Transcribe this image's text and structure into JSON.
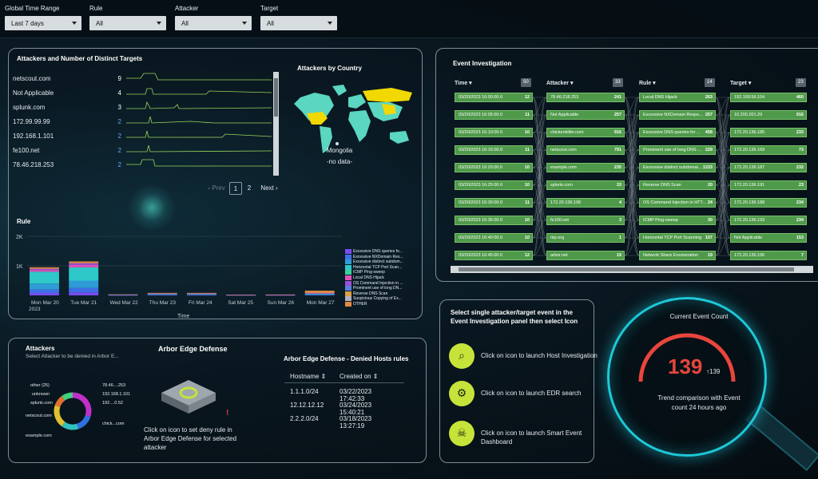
{
  "filters": [
    {
      "label": "Global Time Range",
      "value": "Last 7 days"
    },
    {
      "label": "Rule",
      "value": "All"
    },
    {
      "label": "Attacker",
      "value": "All"
    },
    {
      "label": "Target",
      "value": "All"
    }
  ],
  "attackers_panel": {
    "title": "Attackers and Number of Distinct Targets",
    "rows": [
      {
        "name": "netscout.com",
        "count": "9"
      },
      {
        "name": "Not Applicable",
        "count": "4"
      },
      {
        "name": "splunk.com",
        "count": "3"
      },
      {
        "name": "172.99.99.99",
        "count": "2"
      },
      {
        "name": "192.168.1.101",
        "count": "2"
      },
      {
        "name": "fe100.net",
        "count": "2"
      },
      {
        "name": "78.46.218.253",
        "count": "2"
      }
    ],
    "pager": {
      "prev": "‹ Prev",
      "page1": "1",
      "page2": "2",
      "next": "Next ›"
    }
  },
  "country_map": {
    "title": "Attackers by Country",
    "tooltip_country": "Mongolia",
    "tooltip_value": "-no data-"
  },
  "rule_chart": {
    "title": "Rule",
    "y_ticks": [
      "2K",
      "1K"
    ],
    "x_ticks": [
      "Mon Mar 20",
      "Tue Mar 21",
      "Wed Mar 22",
      "Thu Mar 23",
      "Fri Mar 24",
      "Sat Mar 25",
      "Sun Mar 26",
      "Mon Mar 27"
    ],
    "year": "2023",
    "xlabel": "Time",
    "legend": [
      "Excessive DNS queries fo...",
      "Excessive NXDomain Res...",
      "Excessive distinct subdom...",
      "Horizontal TCP Port Scan...",
      "ICMP Ping-sweep",
      "Local DNS Hijack",
      "OS Command Injection in ...",
      "Prominent use of long DN...",
      "Reverse DNS Scan",
      "Suspicious Copying of Ex...",
      "OTHER"
    ],
    "colors": {
      "legend": [
        "#7a4cf0",
        "#3f6fe6",
        "#2f9bd6",
        "#2ec8c8",
        "#3ad0a0",
        "#e052b8",
        "#9a4fd8",
        "#5a7ee0",
        "#d8a040",
        "#b0b0c0",
        "#e08a40"
      ]
    }
  },
  "chart_data": {
    "type": "bar",
    "categories": [
      "Mon Mar 20",
      "Tue Mar 21",
      "Wed Mar 22",
      "Thu Mar 23",
      "Fri Mar 24",
      "Sat Mar 25",
      "Sun Mar 26",
      "Mon Mar 27"
    ],
    "ylim": [
      0,
      2000
    ],
    "series": [
      {
        "name": "Excessive DNS queries fo...",
        "values": [
          80,
          100,
          5,
          10,
          10,
          5,
          5,
          10
        ]
      },
      {
        "name": "Excessive NXDomain Res...",
        "values": [
          120,
          150,
          5,
          10,
          10,
          5,
          5,
          10
        ]
      },
      {
        "name": "Excessive distinct subdom...",
        "values": [
          200,
          250,
          5,
          15,
          15,
          5,
          5,
          20
        ]
      },
      {
        "name": "Horizontal TCP Port Scan...",
        "values": [
          400,
          450,
          10,
          20,
          20,
          5,
          5,
          20
        ]
      },
      {
        "name": "ICMP Ping-sweep",
        "values": [
          60,
          80,
          0,
          5,
          5,
          0,
          0,
          10
        ]
      },
      {
        "name": "Local DNS Hijack",
        "values": [
          40,
          60,
          0,
          5,
          5,
          0,
          0,
          10
        ]
      },
      {
        "name": "OTHER",
        "values": [
          50,
          60,
          10,
          20,
          20,
          5,
          10,
          80
        ]
      }
    ],
    "xlabel": "Time"
  },
  "event_investigation": {
    "title": "Event Investigation",
    "columns": [
      {
        "label": "Time ▾",
        "badge": "50"
      },
      {
        "label": "Attacker ▾",
        "badge": "33"
      },
      {
        "label": "Rule ▾",
        "badge": "14"
      },
      {
        "label": "Target ▾",
        "badge": "23"
      }
    ],
    "time": [
      {
        "v": "03/20/2023 16:00:00.0",
        "n": "12"
      },
      {
        "v": "03/20/2023 16:05:00.0",
        "n": "11"
      },
      {
        "v": "03/20/2023 16:10:00.0",
        "n": "10"
      },
      {
        "v": "03/20/2023 16:15:00.0",
        "n": "11"
      },
      {
        "v": "03/20/2023 16:20:00.0",
        "n": "10"
      },
      {
        "v": "03/20/2023 16:25:00.0",
        "n": "10"
      },
      {
        "v": "03/20/2023 16:30:00.0",
        "n": "11"
      },
      {
        "v": "03/20/2023 16:35:00.0",
        "n": "10"
      },
      {
        "v": "03/20/2023 16:40:00.0",
        "n": "10"
      },
      {
        "v": "03/20/2023 16:45:00.0",
        "n": "12"
      }
    ],
    "attacker": [
      {
        "v": "78.46.218.253",
        "n": "241"
      },
      {
        "v": "Not Applicable",
        "n": "257"
      },
      {
        "v": "chickenkiller.com",
        "n": "916"
      },
      {
        "v": "netscout.com",
        "n": "791"
      },
      {
        "v": "example.com",
        "n": "235"
      },
      {
        "v": "splunk.com",
        "n": "33"
      },
      {
        "v": "172.20.136.196",
        "n": "4"
      },
      {
        "v": "fe100.net",
        "n": "3"
      },
      {
        "v": "ntp.org",
        "n": "1"
      },
      {
        "v": "arbor.net",
        "n": "19"
      }
    ],
    "rule": [
      {
        "v": "Local DNS Hijack",
        "n": "263"
      },
      {
        "v": "Excessive NXDomain Respo...",
        "n": "257"
      },
      {
        "v": "Excessive DNS queries for ...",
        "n": "458"
      },
      {
        "v": "Prominent use of long DNS ...",
        "n": "229"
      },
      {
        "v": "Excessive distinct subdomai...",
        "n": "1333"
      },
      {
        "v": "Reverse DNS Scan",
        "n": "20"
      },
      {
        "v": "OS Command Injection in HTT...",
        "n": "24"
      },
      {
        "v": "ICMP Ping-sweep",
        "n": "30"
      },
      {
        "v": "Horizontal TCP Port Scanning",
        "n": "107"
      },
      {
        "v": "Network Share Enumeration",
        "n": "19"
      }
    ],
    "target": [
      {
        "v": "192.168.56.104",
        "n": "460"
      },
      {
        "v": "10.200.201.29",
        "n": "916"
      },
      {
        "v": "172.20.136.185",
        "n": "233"
      },
      {
        "v": "172.20.136.169",
        "n": "73"
      },
      {
        "v": "172.20.136.187",
        "n": "232"
      },
      {
        "v": "172.20.136.191",
        "n": "23"
      },
      {
        "v": "172.20.136.188",
        "n": "234"
      },
      {
        "v": "172.20.136.193",
        "n": "234"
      },
      {
        "v": "Not Applicable",
        "n": "153"
      },
      {
        "v": "172.20.136.196",
        "n": "7"
      }
    ]
  },
  "arbor": {
    "attackers_title": "Attackers",
    "attackers_sub": "Select Attacker to be denied in Arbor E...",
    "donut_labels": [
      "other (25)",
      "unknown",
      "splunk.com",
      "netscout.com",
      "example.com",
      "78.46....253",
      "192.168.1.101",
      "192....0.52",
      "chick...com"
    ],
    "aed_title": "Arbor Edge Defense",
    "aed_caption": "Click on icon to set deny rule in Arbor Edge Defense for selected attacker",
    "denied_title": "Arbor Edge Defense - Denied Hosts rules",
    "denied_headers": [
      "Hostname ⇕",
      "Created on ⇕"
    ],
    "denied_rows": [
      [
        "1.1.1.0/24",
        "03/22/2023 17:42:33"
      ],
      [
        "12.12.12.12",
        "03/24/2023 15:40:21"
      ],
      [
        "2.2.2.0/24",
        "03/18/2023 13:27:19"
      ]
    ]
  },
  "launch_panel": {
    "title": "Select single attacker/target event in the Event Investigation panel then select Icon",
    "items": [
      {
        "text": "Click on icon to launch Host Investigation",
        "icon": "host-investigation-icon"
      },
      {
        "text": "Click on icon to launch EDR search",
        "icon": "edr-search-icon"
      },
      {
        "text": "Click on icon to launch Smart Event Dashboard",
        "icon": "smart-event-icon"
      }
    ]
  },
  "event_count": {
    "title": "Current Event Count",
    "value": "139",
    "trend": "↑139",
    "caption": "Trend comparison with Event count 24 hours ago",
    "value_color": "#e8453c"
  }
}
